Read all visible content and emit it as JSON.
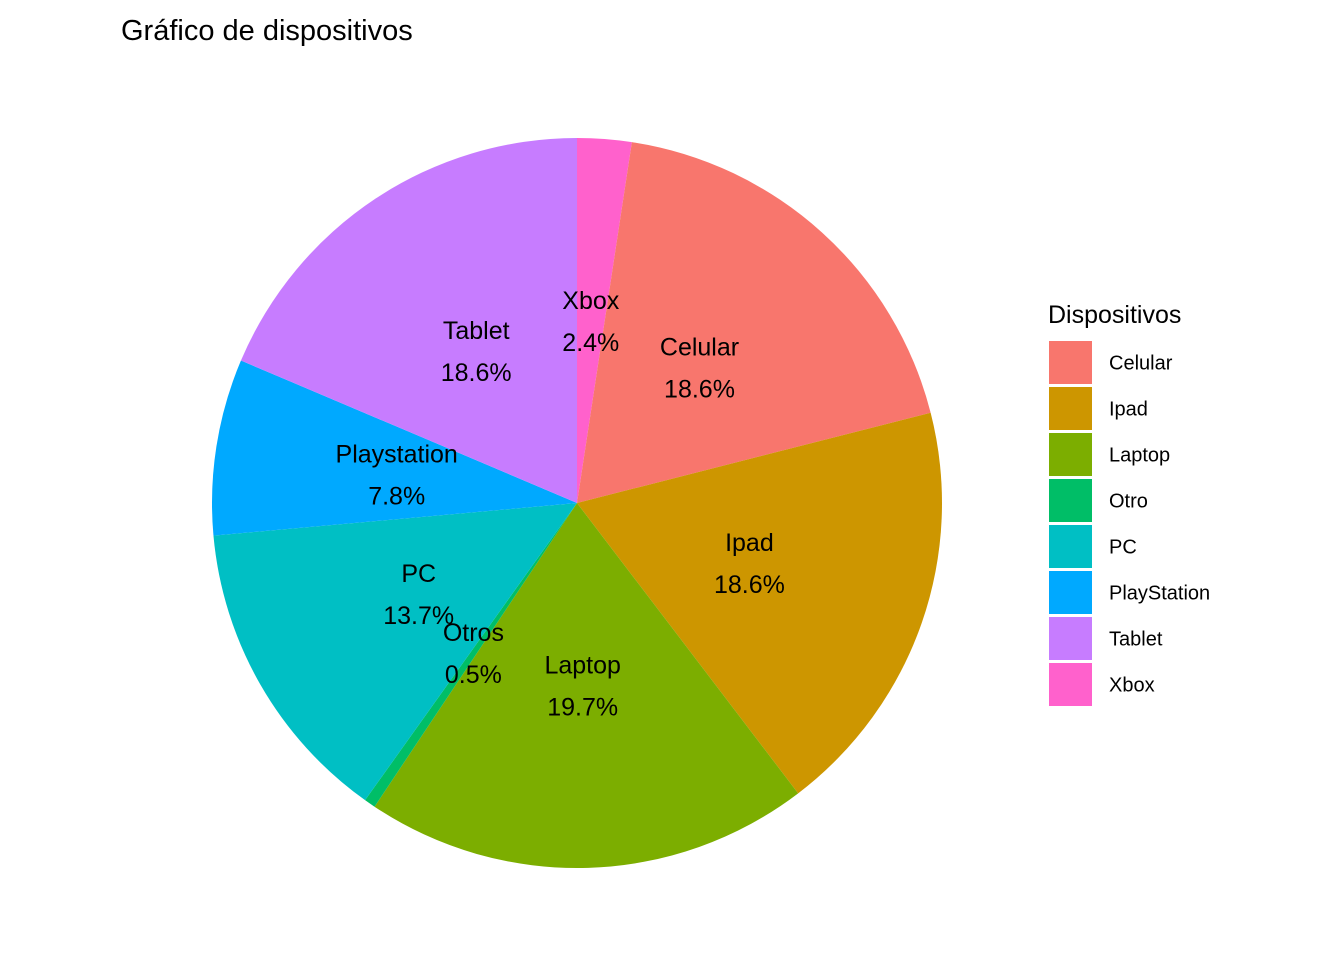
{
  "chart_data": {
    "type": "pie",
    "title": "Gráfico de dispositivos",
    "legend_title": "Dispositivos",
    "legend_position": "right",
    "start": "top",
    "direction": "counterclockwise",
    "slices": [
      {
        "category": "Xbox",
        "value": 2.4,
        "label": "Xbox",
        "pct_label": "2.4%",
        "color": "#FF61CC"
      },
      {
        "category": "Celular",
        "value": 18.6,
        "label": "Celular",
        "pct_label": "18.6%",
        "color": "#F8766D"
      },
      {
        "category": "Ipad",
        "value": 18.6,
        "label": "Ipad",
        "pct_label": "18.6%",
        "color": "#CD9600"
      },
      {
        "category": "Laptop",
        "value": 19.7,
        "label": "Laptop",
        "pct_label": "19.7%",
        "color": "#7CAE00"
      },
      {
        "category": "Otro",
        "value": 0.5,
        "label": "Otros",
        "pct_label": "0.5%",
        "color": "#00BE67"
      },
      {
        "category": "PC",
        "value": 13.7,
        "label": "PC",
        "pct_label": "13.7%",
        "color": "#00BFC4"
      },
      {
        "category": "PlayStation",
        "value": 7.8,
        "label": "Playstation",
        "pct_label": "7.8%",
        "color": "#00A9FF"
      },
      {
        "category": "Tablet",
        "value": 18.6,
        "label": "Tablet",
        "pct_label": "18.6%",
        "color": "#C77CFF"
      }
    ],
    "legend": [
      {
        "label": "Celular",
        "color": "#F8766D"
      },
      {
        "label": "Ipad",
        "color": "#CD9600"
      },
      {
        "label": "Laptop",
        "color": "#7CAE00"
      },
      {
        "label": "Otro",
        "color": "#00BE67"
      },
      {
        "label": "PC",
        "color": "#00BFC4"
      },
      {
        "label": "PlayStation",
        "color": "#00A9FF"
      },
      {
        "label": "Tablet",
        "color": "#C77CFF"
      },
      {
        "label": "Xbox",
        "color": "#FF61CC"
      }
    ]
  }
}
